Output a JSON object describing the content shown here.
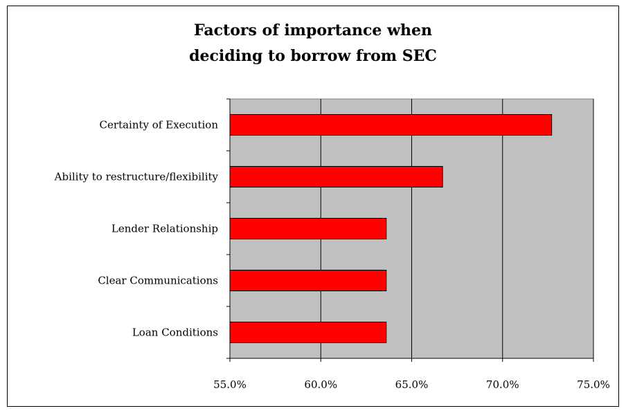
{
  "chart_data": {
    "type": "bar",
    "orientation": "horizontal",
    "title": [
      "Factors of importance when",
      "deciding to borrow from SEC"
    ],
    "categories": [
      "Certainty of Execution",
      "Ability to restructure/flexibility",
      "Lender Relationship",
      "Clear Communications",
      "Loan Conditions"
    ],
    "values": [
      72.7,
      66.7,
      63.6,
      63.6,
      63.6
    ],
    "xlim": [
      55.0,
      75.0
    ],
    "xticks": [
      55.0,
      60.0,
      65.0,
      70.0,
      75.0
    ],
    "xtick_labels": [
      "55.0%",
      "60.0%",
      "65.0%",
      "70.0%",
      "75.0%"
    ],
    "grid": "vertical",
    "legend": "none",
    "colors": {
      "bar": "#ff0000",
      "plot_background": "#c0c0c0",
      "gridline": "#000000"
    }
  }
}
